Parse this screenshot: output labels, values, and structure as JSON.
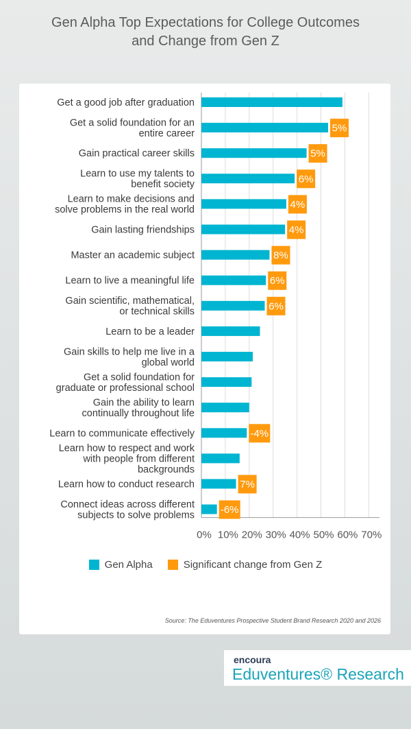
{
  "title_line1": "Gen Alpha Top Expectations for College Outcomes",
  "title_line2": "and Change from Gen Z",
  "chart_data": {
    "type": "bar",
    "orientation": "horizontal",
    "title": "Gen Alpha Top Expectations for College Outcomes and Change from Gen Z",
    "categories": [
      [
        "Get a good job after graduation"
      ],
      [
        "Get a solid foundation for an",
        "entire career"
      ],
      [
        "Gain practical career skills"
      ],
      [
        "Learn to use my talents to",
        "benefit society"
      ],
      [
        "Learn to make decisions and",
        "solve problems in the real world"
      ],
      [
        "Gain lasting friendships"
      ],
      [
        "Master an academic subject"
      ],
      [
        "Learn to live a meaningful life"
      ],
      [
        "Gain scientific, mathematical,",
        "or technical skills"
      ],
      [
        "Learn to be a leader"
      ],
      [
        "Gain skills to help me live in a",
        "global world"
      ],
      [
        "Get a solid foundation for",
        "graduate or professional school"
      ],
      [
        "Gain the ability to learn",
        "continually throughout life"
      ],
      [
        "Learn to communicate effectively"
      ],
      [
        "Learn how to respect and work",
        "with people from different",
        "backgrounds"
      ],
      [
        "Learn how to conduct research"
      ],
      [
        "Connect ideas across different",
        "subjects to solve problems"
      ]
    ],
    "series": [
      {
        "name": "Gen Alpha",
        "color": "#00b5d1",
        "values": [
          59,
          53,
          44,
          39,
          35.5,
          35,
          28.5,
          27,
          26.5,
          24.5,
          21.5,
          21,
          20,
          19,
          16,
          14.5,
          6.5
        ]
      },
      {
        "name": "Significant change from Gen Z",
        "color": "#ff9a0e",
        "labels": [
          "",
          "5%",
          "5%",
          "6%",
          "4%",
          "4%",
          "8%",
          "6%",
          "6%",
          "",
          "",
          "",
          "",
          "-4%",
          "",
          "7%",
          "-6%"
        ]
      }
    ],
    "xlim": [
      0,
      70
    ],
    "xticks": [
      "0%",
      "10%",
      "20%",
      "30%",
      "40%",
      "50%",
      "60%",
      "70%"
    ],
    "grid": true,
    "legend": "bottom"
  },
  "legend": {
    "gen_alpha": "Gen Alpha",
    "change": "Significant change from Gen Z"
  },
  "source": "Source: The Eduventures Prospective Student Brand Research 2020 and 2026",
  "logo": {
    "brand": "encoura",
    "name": "Eduventures® Research"
  }
}
